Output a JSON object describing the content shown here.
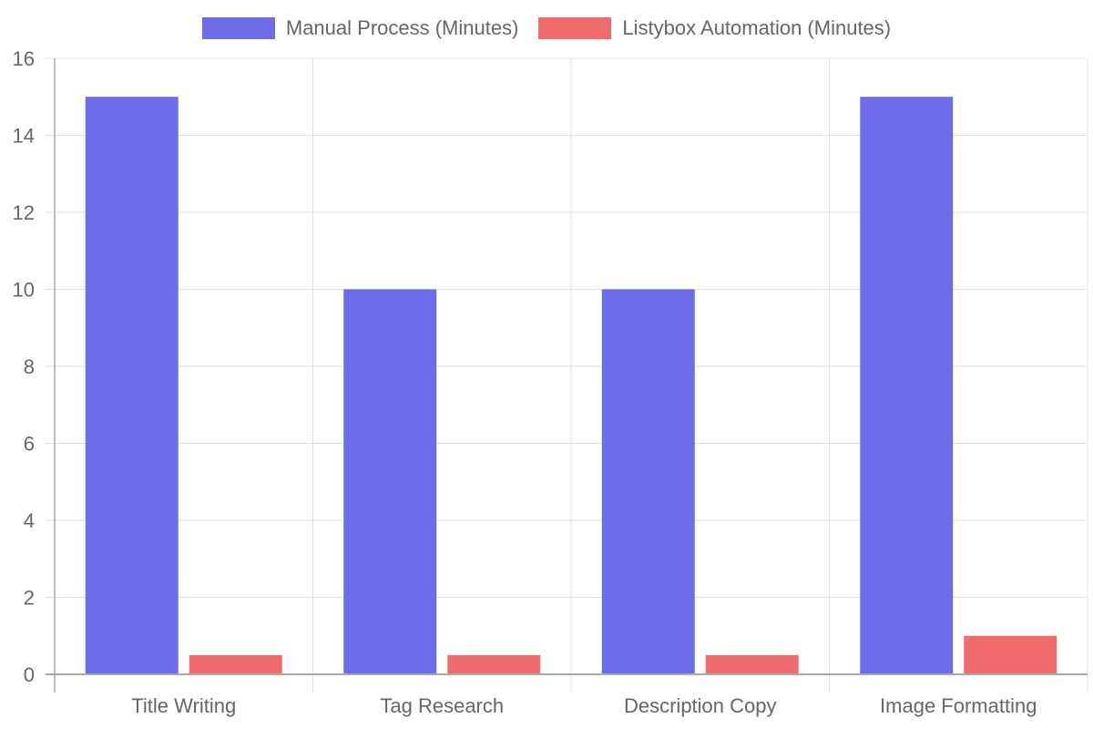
{
  "chart_data": {
    "type": "bar",
    "title": "",
    "xlabel": "",
    "ylabel": "",
    "categories": [
      "Title Writing",
      "Tag Research",
      "Description Copy",
      "Image Formatting"
    ],
    "series": [
      {
        "name": "Manual Process (Minutes)",
        "color": "#6f6ce9",
        "values": [
          15,
          10,
          10,
          15
        ]
      },
      {
        "name": "Listybox Automation (Minutes)",
        "color": "#f06b6b",
        "values": [
          0.5,
          0.5,
          0.5,
          1
        ]
      }
    ],
    "ylim": [
      0,
      16
    ],
    "yticks": [
      0,
      2,
      4,
      6,
      8,
      10,
      12,
      14,
      16
    ],
    "grid": true,
    "legend_position": "top"
  },
  "legend": {
    "items": [
      {
        "label": "Manual Process (Minutes)",
        "color": "#6f6ce9"
      },
      {
        "label": "Listybox Automation (Minutes)",
        "color": "#f06b6b"
      }
    ]
  }
}
